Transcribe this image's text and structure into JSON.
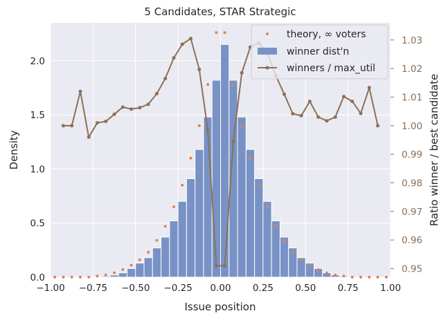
{
  "chart_data": {
    "type": "bar",
    "title": "5 Candidates, STAR Strategic",
    "xlabel": "Issue position",
    "ylabel": "Density",
    "y2label": "Ratio winner / best candidate",
    "xlim": [
      -1.0,
      1.0
    ],
    "ylim": [
      0,
      2.35
    ],
    "y2lim": [
      0.947,
      1.036
    ],
    "x_ticks": [
      "-1.00",
      "-0.75",
      "-0.50",
      "-0.25",
      "0.00",
      "0.25",
      "0.50",
      "0.75",
      "1.00"
    ],
    "y_ticks": [
      "0.0",
      "0.5",
      "1.0",
      "1.5",
      "2.0"
    ],
    "y2_ticks": [
      "0.95",
      "0.96",
      "0.97",
      "0.98",
      "0.99",
      "1.00",
      "1.01",
      "1.02",
      "1.03"
    ],
    "grid": true,
    "legend_position": "top-right",
    "colors": {
      "bars": "#7992c6",
      "theory": "#dd8452",
      "ratio_line": "#8c7055",
      "right_axis": "#8a6d52",
      "plot_bg": "#eaeaf2",
      "grid": "#ffffff"
    },
    "series": [
      {
        "name": "winner dist'n",
        "kind": "bar",
        "bin_width": 0.05,
        "x": [
          -1.0,
          -0.95,
          -0.9,
          -0.85,
          -0.8,
          -0.75,
          -0.7,
          -0.65,
          -0.6,
          -0.55,
          -0.5,
          -0.45,
          -0.4,
          -0.35,
          -0.3,
          -0.25,
          -0.2,
          -0.15,
          -0.1,
          -0.05,
          0.0,
          0.05,
          0.1,
          0.15,
          0.2,
          0.25,
          0.3,
          0.35,
          0.4,
          0.45,
          0.5,
          0.55,
          0.6,
          0.65,
          0.7,
          0.75,
          0.8,
          0.85,
          0.9,
          0.95
        ],
        "values": [
          0.0,
          0.0,
          0.0,
          0.0,
          0.0,
          0.0,
          0.01,
          0.02,
          0.04,
          0.08,
          0.13,
          0.18,
          0.27,
          0.37,
          0.52,
          0.7,
          0.91,
          1.18,
          1.48,
          1.82,
          2.15,
          1.82,
          1.48,
          1.18,
          0.91,
          0.7,
          0.52,
          0.37,
          0.27,
          0.18,
          0.13,
          0.08,
          0.04,
          0.02,
          0.01,
          0.0,
          0.0,
          0.0,
          0.0,
          0.0
        ]
      },
      {
        "name": "theory, ∞ voters",
        "kind": "scatter",
        "x": [
          -0.975,
          -0.925,
          -0.875,
          -0.825,
          -0.775,
          -0.725,
          -0.675,
          -0.625,
          -0.575,
          -0.525,
          -0.475,
          -0.425,
          -0.375,
          -0.325,
          -0.275,
          -0.225,
          -0.175,
          -0.125,
          -0.075,
          -0.025,
          0.025,
          0.075,
          0.125,
          0.175,
          0.225,
          0.275,
          0.325,
          0.375,
          0.425,
          0.475,
          0.525,
          0.575,
          0.625,
          0.675,
          0.725,
          0.775,
          0.825,
          0.875,
          0.925,
          0.975
        ],
        "values": [
          0.0,
          0.0,
          0.0,
          0.0,
          0.0,
          0.01,
          0.02,
          0.04,
          0.07,
          0.11,
          0.16,
          0.23,
          0.34,
          0.47,
          0.65,
          0.85,
          1.1,
          1.4,
          1.78,
          2.26,
          2.26,
          1.78,
          1.4,
          1.1,
          0.85,
          0.65,
          0.47,
          0.34,
          0.23,
          0.16,
          0.11,
          0.07,
          0.04,
          0.02,
          0.01,
          0.0,
          0.0,
          0.0,
          0.0,
          0.0
        ]
      },
      {
        "name": "winners / max_util",
        "kind": "line",
        "axis": "right",
        "x": [
          -0.925,
          -0.875,
          -0.825,
          -0.775,
          -0.725,
          -0.675,
          -0.625,
          -0.575,
          -0.525,
          -0.475,
          -0.425,
          -0.375,
          -0.325,
          -0.275,
          -0.225,
          -0.175,
          -0.125,
          -0.075,
          -0.025,
          0.025,
          0.075,
          0.125,
          0.175,
          0.225,
          0.275,
          0.325,
          0.375,
          0.425,
          0.475,
          0.525,
          0.575,
          0.625,
          0.675,
          0.725,
          0.775,
          0.825,
          0.875,
          0.925
        ],
        "values": [
          1.0,
          1.0,
          1.012,
          0.996,
          1.001,
          1.0015,
          1.004,
          1.0065,
          1.0058,
          1.0063,
          1.0075,
          1.0112,
          1.0165,
          1.0237,
          1.0285,
          1.0305,
          1.0197,
          0.9985,
          0.951,
          0.951,
          0.9945,
          1.0185,
          1.0275,
          1.029,
          1.0255,
          1.0175,
          1.011,
          1.0042,
          1.0035,
          1.0085,
          1.003,
          1.0017,
          1.003,
          1.0102,
          1.0085,
          1.0043,
          1.0133,
          1.0
        ]
      }
    ]
  }
}
